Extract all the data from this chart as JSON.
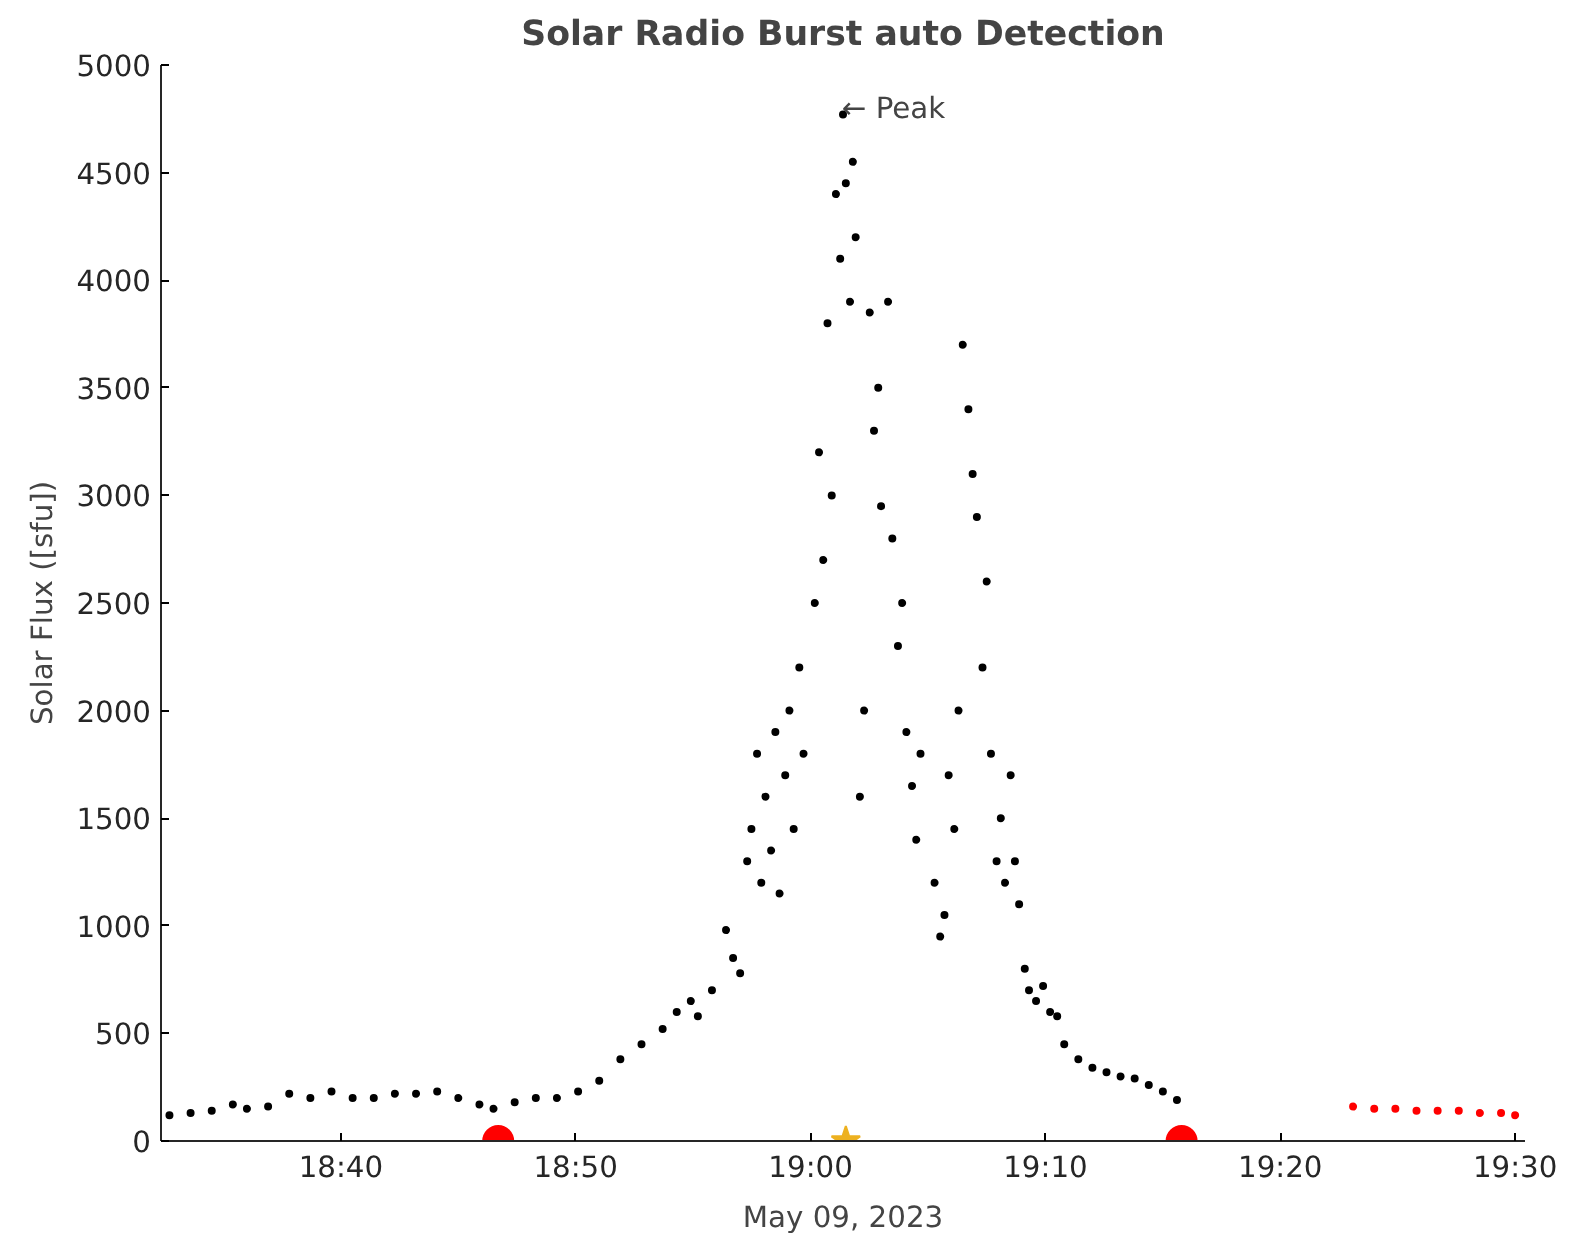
{
  "chart_data": {
    "type": "scatter",
    "title": "Solar Radio Burst auto Detection",
    "xlabel": "May 09, 2023",
    "ylabel": "Solar Flux ([sfu])",
    "xlim": [
      18.539,
      19.507
    ],
    "ylim": [
      0,
      5000
    ],
    "xticks": [
      {
        "value": 18.6667,
        "label": "18:40"
      },
      {
        "value": 18.8333,
        "label": "18:50"
      },
      {
        "value": 19.0,
        "label": "19:00"
      },
      {
        "value": 19.1667,
        "label": "19:10"
      },
      {
        "value": 19.3333,
        "label": "19:20"
      },
      {
        "value": 19.5,
        "label": "19:30"
      }
    ],
    "yticks": [
      0,
      500,
      1000,
      1500,
      2000,
      2500,
      3000,
      3500,
      4000,
      4500,
      5000
    ],
    "grid": false,
    "annotations": [
      {
        "text": "← Peak",
        "x": 19.025,
        "y": 4770
      }
    ],
    "series": [
      {
        "color": "#000000",
        "marker": "circle",
        "x": [
          18.545,
          18.56,
          18.575,
          18.59,
          18.6,
          18.615,
          18.63,
          18.645,
          18.66,
          18.675,
          18.69,
          18.705,
          18.72,
          18.735,
          18.75,
          18.765,
          18.775,
          18.79,
          18.805,
          18.82,
          18.835,
          18.85,
          18.865,
          18.88,
          18.895,
          18.905,
          18.915,
          18.92,
          18.93,
          18.94,
          18.945,
          18.95,
          18.955,
          18.958,
          18.962,
          18.965,
          18.968,
          18.972,
          18.975,
          18.978,
          18.982,
          18.985,
          18.988,
          18.992,
          18.995,
          19.003,
          19.006,
          19.009,
          19.012,
          19.015,
          19.018,
          19.021,
          19.023,
          19.025,
          19.028,
          19.03,
          19.032,
          19.035,
          19.038,
          19.042,
          19.045,
          19.048,
          19.05,
          19.055,
          19.058,
          19.062,
          19.065,
          19.068,
          19.072,
          19.075,
          19.078,
          19.088,
          19.092,
          19.095,
          19.098,
          19.102,
          19.105,
          19.108,
          19.112,
          19.115,
          19.118,
          19.122,
          19.125,
          19.128,
          19.132,
          19.135,
          19.138,
          19.142,
          19.145,
          19.148,
          19.152,
          19.155,
          19.16,
          19.165,
          19.17,
          19.175,
          19.18,
          19.19,
          19.2,
          19.21,
          19.22,
          19.23,
          19.24,
          19.25,
          19.26
        ],
        "values": [
          120,
          130,
          140,
          170,
          150,
          160,
          220,
          200,
          230,
          200,
          200,
          220,
          220,
          230,
          200,
          170,
          150,
          180,
          200,
          200,
          230,
          280,
          380,
          450,
          520,
          600,
          650,
          580,
          700,
          980,
          850,
          780,
          1300,
          1450,
          1800,
          1200,
          1600,
          1350,
          1900,
          1150,
          1700,
          2000,
          1450,
          2200,
          1800,
          2500,
          3200,
          2700,
          3800,
          3000,
          4400,
          4100,
          4770,
          4450,
          3900,
          4550,
          4200,
          1600,
          2000,
          3850,
          3300,
          3500,
          2950,
          3900,
          2800,
          2300,
          2500,
          1900,
          1650,
          1400,
          1800,
          1200,
          950,
          1050,
          1700,
          1450,
          2000,
          3700,
          3400,
          3100,
          2900,
          2200,
          2600,
          1800,
          1300,
          1500,
          1200,
          1700,
          1300,
          1100,
          800,
          700,
          650,
          720,
          600,
          580,
          450,
          380,
          340,
          320,
          300,
          290,
          260,
          230,
          190
        ]
      },
      {
        "color": "#ff0000",
        "marker": "circle",
        "x": [
          19.385,
          19.4,
          19.415,
          19.43,
          19.445,
          19.46,
          19.475,
          19.49,
          19.5
        ],
        "values": [
          160,
          150,
          150,
          140,
          140,
          140,
          130,
          130,
          120
        ]
      },
      {
        "color": "#ff0000",
        "marker": "circle",
        "x": [
          18.7783,
          19.2633
        ],
        "values": [
          0,
          0
        ]
      },
      {
        "color": "#edb120",
        "marker": "star",
        "x": [
          19.025
        ],
        "values": [
          0
        ]
      }
    ]
  }
}
